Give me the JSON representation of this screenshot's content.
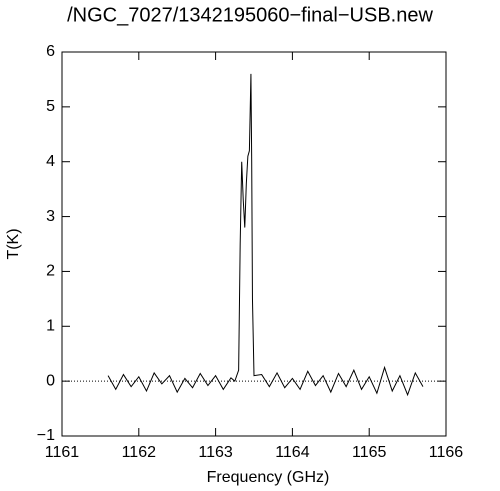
{
  "chart_data": {
    "type": "line",
    "title": "/NGC_7027/1342195060−final−USB.new",
    "x_label": "Frequency (GHz)",
    "y_label": "T(K)",
    "xlim": [
      1161,
      1166
    ],
    "ylim": [
      -1,
      6
    ],
    "xticks": [
      1161,
      1162,
      1163,
      1164,
      1165,
      1166
    ],
    "yticks": [
      {
        "value": -1,
        "label": "−1"
      },
      0,
      1,
      2,
      3,
      4,
      5,
      6
    ],
    "baseline": 0,
    "color": "#000000",
    "x": [
      1161.6,
      1161.7,
      1161.8,
      1161.9,
      1162.0,
      1162.1,
      1162.2,
      1162.3,
      1162.4,
      1162.5,
      1162.6,
      1162.7,
      1162.8,
      1162.9,
      1163.0,
      1163.1,
      1163.2,
      1163.25,
      1163.3,
      1163.32,
      1163.34,
      1163.36,
      1163.38,
      1163.4,
      1163.42,
      1163.44,
      1163.46,
      1163.47,
      1163.48,
      1163.5,
      1163.6,
      1163.7,
      1163.8,
      1163.9,
      1164.0,
      1164.1,
      1164.2,
      1164.3,
      1164.4,
      1164.5,
      1164.6,
      1164.7,
      1164.8,
      1164.9,
      1165.0,
      1165.1,
      1165.2,
      1165.3,
      1165.4,
      1165.5,
      1165.6,
      1165.7
    ],
    "values": [
      0.1,
      -0.15,
      0.12,
      -0.1,
      0.08,
      -0.18,
      0.15,
      -0.05,
      0.1,
      -0.2,
      0.05,
      -0.12,
      0.14,
      -0.08,
      0.1,
      -0.15,
      0.06,
      0.0,
      0.2,
      2.5,
      4.0,
      3.3,
      2.8,
      3.6,
      4.1,
      4.2,
      5.6,
      4.0,
      1.5,
      0.1,
      0.12,
      -0.1,
      0.15,
      -0.12,
      0.05,
      -0.15,
      0.18,
      -0.08,
      0.1,
      -0.2,
      0.14,
      -0.1,
      0.2,
      -0.15,
      0.08,
      -0.22,
      0.25,
      -0.18,
      0.1,
      -0.25,
      0.15,
      -0.1
    ]
  }
}
